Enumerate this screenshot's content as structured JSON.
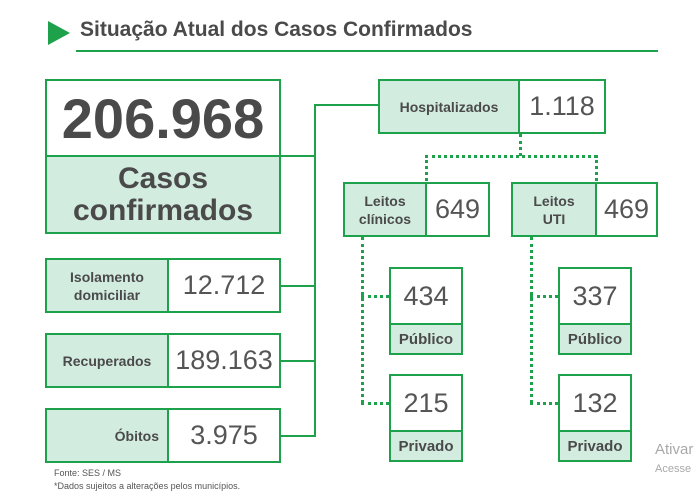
{
  "header": {
    "title": "Situação Atual dos Casos Confirmados"
  },
  "colors": {
    "accent": "#1ea14b",
    "label_bg": "#d3ece0",
    "text": "#555555"
  },
  "total": {
    "value": "206.968",
    "label_line1": "Casos",
    "label_line2": "confirmados"
  },
  "isolamento": {
    "label_line1": "Isolamento",
    "label_line2": "domiciliar",
    "value": "12.712"
  },
  "recuperados": {
    "label": "Recuperados",
    "value": "189.163"
  },
  "obitos": {
    "label": "Óbitos",
    "value": "3.975"
  },
  "hospitalizados": {
    "label": "Hospitalizados",
    "value": "1.118"
  },
  "leitos_clinicos": {
    "label_line1": "Leitos",
    "label_line2": "clínicos",
    "value": "649",
    "publico": {
      "value": "434",
      "label": "Público"
    },
    "privado": {
      "value": "215",
      "label": "Privado"
    }
  },
  "leitos_uti": {
    "label_line1": "Leitos",
    "label_line2": "UTI",
    "value": "469",
    "publico": {
      "value": "337",
      "label": "Público"
    },
    "privado": {
      "value": "132",
      "label": "Privado"
    }
  },
  "footer": {
    "source": "Fonte: SES / MS",
    "note": "*Dados sujeitos a alterações pelos municípios."
  },
  "watermark": {
    "line1": "Ativar",
    "line2": "Acesse"
  }
}
